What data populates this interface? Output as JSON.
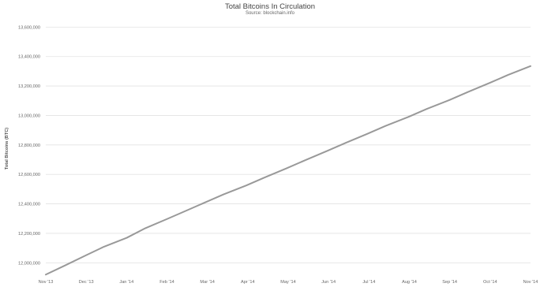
{
  "chart_data": {
    "type": "line",
    "title": "Total Bitcoins In Circulation",
    "subtitle": "Source: blockchain.info",
    "xlabel": "",
    "ylabel": "Total Bitcoins (BTC)",
    "x_ticks": [
      "Nov '13",
      "Dec '13",
      "Jan '14",
      "Feb '14",
      "Mar '14",
      "Apr '14",
      "May '14",
      "Jun '14",
      "Jul '14",
      "Aug '14",
      "Sep '14",
      "Oct '14",
      "Nov '14"
    ],
    "y_ticks": [
      "12,000,000",
      "12,200,000",
      "12,400,000",
      "12,600,000",
      "12,800,000",
      "13,000,000",
      "13,200,000",
      "13,400,000",
      "13,600,000"
    ],
    "ylim": [
      11900000,
      13650000
    ],
    "xlim": [
      "2013-11-01",
      "2014-11-01"
    ],
    "grid": true,
    "legend": "none",
    "line_color": "#999999",
    "series": [
      {
        "x": [
          "2013-11-01",
          "2013-11-15",
          "2013-12-01",
          "2013-12-15",
          "2014-01-01",
          "2014-01-15",
          "2014-02-01",
          "2014-02-15",
          "2014-03-01",
          "2014-03-15",
          "2014-04-01",
          "2014-04-15",
          "2014-05-01",
          "2014-05-15",
          "2014-06-01",
          "2014-06-15",
          "2014-07-01",
          "2014-07-15",
          "2014-08-01",
          "2014-08-15",
          "2014-09-01",
          "2014-09-15",
          "2014-10-01",
          "2014-10-15",
          "2014-11-01"
        ],
        "values": [
          11920000,
          11980000,
          12050000,
          12110000,
          12170000,
          12235000,
          12300000,
          12355000,
          12410000,
          12465000,
          12525000,
          12580000,
          12640000,
          12695000,
          12760000,
          12815000,
          12875000,
          12930000,
          12990000,
          13045000,
          13105000,
          13160000,
          13220000,
          13275000,
          13335000
        ]
      }
    ]
  }
}
